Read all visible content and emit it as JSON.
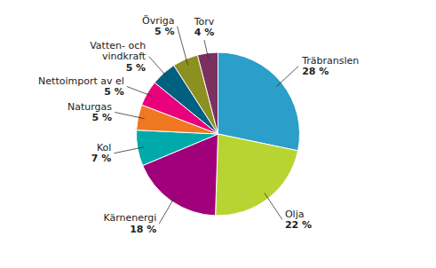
{
  "chart_data": {
    "type": "pie",
    "categories": [
      "Träbranslen",
      "Olja",
      "Kärnenergi",
      "Kol",
      "Naturgas",
      "Nettoimport av el",
      "Vatten- och\nvindkraft",
      "Övriga",
      "Torv"
    ],
    "values": [
      28,
      22,
      18,
      7,
      5,
      5,
      5,
      5,
      4
    ],
    "value_labels": [
      "28 %",
      "22 %",
      "18 %",
      "7 %",
      "5 %",
      "5 %",
      "5 %",
      "5 %",
      "4 %"
    ],
    "colors": [
      "#2B9EC9",
      "#B8D432",
      "#A0007A",
      "#00AAAA",
      "#F07820",
      "#E8007C",
      "#006080",
      "#8C9020",
      "#7C3060"
    ],
    "data_labels": true
  }
}
